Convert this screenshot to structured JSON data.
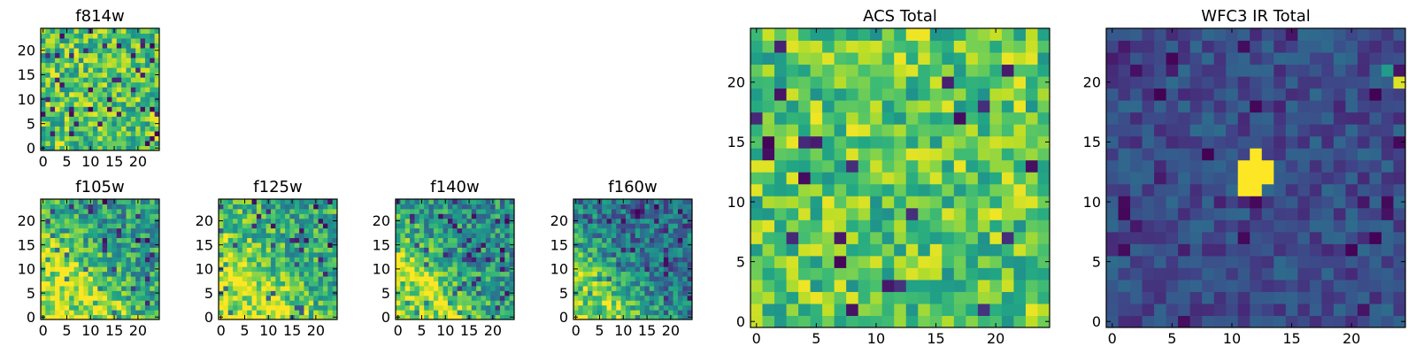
{
  "chart_data": [
    {
      "type": "heatmap",
      "title": "f814w",
      "xticks": [
        "0",
        "5",
        "10",
        "15",
        "20"
      ],
      "yticks": [
        "0",
        "5",
        "10",
        "15",
        "20"
      ],
      "xlim": [
        -0.5,
        24.5
      ],
      "ylim": [
        -0.5,
        24.5
      ],
      "grid_size": 25,
      "colormap": "viridis",
      "pattern": "uniform noise, mostly green-yellow",
      "seed": 814,
      "noise_range": [
        0.45,
        0.98
      ],
      "dark_pixel_fraction": 0.04,
      "bright_feature": null
    },
    {
      "type": "heatmap",
      "title": "f105w",
      "xticks": [
        "0",
        "5",
        "10",
        "15",
        "20"
      ],
      "yticks": [
        "0",
        "5",
        "10",
        "15",
        "20"
      ],
      "xlim": [
        -0.5,
        24.5
      ],
      "ylim": [
        -0.5,
        24.5
      ],
      "grid_size": 25,
      "colormap": "viridis",
      "pattern": "bright diagonal band in lower-left corner over noisy background",
      "seed": 105,
      "noise_range": [
        0.3,
        0.8
      ],
      "dark_pixel_fraction": 0.06,
      "bright_feature": {
        "shape": "diagonal-band",
        "strength": 0.45,
        "center": 7,
        "width": 6
      }
    },
    {
      "type": "heatmap",
      "title": "f125w",
      "xticks": [
        "0",
        "5",
        "10",
        "15",
        "20"
      ],
      "yticks": [
        "0",
        "5",
        "10",
        "15",
        "20"
      ],
      "xlim": [
        -0.5,
        24.5
      ],
      "ylim": [
        -0.5,
        24.5
      ],
      "grid_size": 25,
      "colormap": "viridis",
      "pattern": "bright diagonal band in lower-left corner over noisy background",
      "seed": 125,
      "noise_range": [
        0.35,
        0.85
      ],
      "dark_pixel_fraction": 0.06,
      "bright_feature": {
        "shape": "diagonal-band",
        "strength": 0.4,
        "center": 6,
        "width": 7
      }
    },
    {
      "type": "heatmap",
      "title": "f140w",
      "xticks": [
        "0",
        "5",
        "10",
        "15",
        "20"
      ],
      "yticks": [
        "0",
        "5",
        "10",
        "15",
        "20"
      ],
      "xlim": [
        -0.5,
        24.5
      ],
      "ylim": [
        -0.5,
        24.5
      ],
      "grid_size": 25,
      "colormap": "viridis",
      "pattern": "bright diagonal band in lower-left corner over noisy background",
      "seed": 140,
      "noise_range": [
        0.25,
        0.75
      ],
      "dark_pixel_fraction": 0.07,
      "bright_feature": {
        "shape": "diagonal-band",
        "strength": 0.5,
        "center": 6,
        "width": 6
      }
    },
    {
      "type": "heatmap",
      "title": "f160w",
      "xticks": [
        "0",
        "5",
        "10",
        "15",
        "20"
      ],
      "yticks": [
        "0",
        "5",
        "10",
        "15",
        "20"
      ],
      "xlim": [
        -0.5,
        24.5
      ],
      "ylim": [
        -0.5,
        24.5
      ],
      "grid_size": 25,
      "colormap": "viridis",
      "pattern": "bright diagonal band in lower-left corner over darker noisy background",
      "seed": 160,
      "noise_range": [
        0.15,
        0.6
      ],
      "dark_pixel_fraction": 0.07,
      "bright_feature": {
        "shape": "diagonal-band",
        "strength": 0.55,
        "center": 5,
        "width": 6
      }
    },
    {
      "type": "heatmap",
      "title": "ACS Total",
      "xticks": [
        "0",
        "5",
        "10",
        "15",
        "20"
      ],
      "yticks": [
        "0",
        "5",
        "10",
        "15",
        "20"
      ],
      "xlim": [
        -0.5,
        24.5
      ],
      "ylim": [
        -0.5,
        24.5
      ],
      "grid_size": 25,
      "colormap": "viridis",
      "pattern": "uniform noise, mostly green-yellow with scattered dark pixels",
      "seed": 9001,
      "noise_range": [
        0.5,
        0.98
      ],
      "dark_pixel_fraction": 0.035,
      "bright_feature": null
    },
    {
      "type": "heatmap",
      "title": "WFC3 IR Total",
      "xticks": [
        "0",
        "5",
        "10",
        "15",
        "20"
      ],
      "yticks": [
        "0",
        "5",
        "10",
        "15",
        "20"
      ],
      "xlim": [
        -0.5,
        24.5
      ],
      "ylim": [
        -0.5,
        24.5
      ],
      "grid_size": 25,
      "colormap": "viridis",
      "pattern": "dark blue noise with a bright yellow cross-shaped source near (12, 12)",
      "seed": 3001,
      "noise_range": [
        0.12,
        0.35
      ],
      "dark_pixel_fraction": 0.05,
      "bright_feature": {
        "shape": "cross",
        "center_x": 12,
        "center_y": 12
      }
    }
  ]
}
